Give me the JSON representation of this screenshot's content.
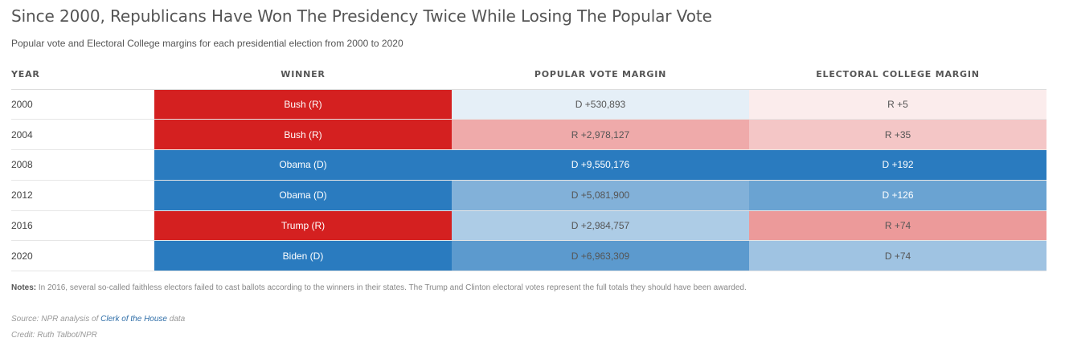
{
  "title": "Since 2000, Republicans Have Won The Presidency Twice While Losing The Popular Vote",
  "subtitle": "Popular vote and Electoral College margins for each presidential election from 2000 to 2020",
  "colors": {
    "rep_strong": "#d42020",
    "dem_strong": "#2a7bbf",
    "rep_light": "#f2b9b9",
    "dem_light": "#bdd7eb",
    "neutral_light": "#f2f6f9"
  },
  "chart_data": {
    "type": "table",
    "columns": [
      "YEAR",
      "WINNER",
      "POPULAR VOTE MARGIN",
      "ELECTORAL COLLEGE MARGIN"
    ],
    "rows": [
      {
        "year": "2000",
        "winner": "Bush (R)",
        "winner_party": "R",
        "popular": "D +530,893",
        "popular_party": "D",
        "popular_value": 530893,
        "electoral": "R +5",
        "electoral_party": "R",
        "electoral_value": 5
      },
      {
        "year": "2004",
        "winner": "Bush (R)",
        "winner_party": "R",
        "popular": "R +2,978,127",
        "popular_party": "R",
        "popular_value": 2978127,
        "electoral": "R +35",
        "electoral_party": "R",
        "electoral_value": 35
      },
      {
        "year": "2008",
        "winner": "Obama (D)",
        "winner_party": "D",
        "popular": "D +9,550,176",
        "popular_party": "D",
        "popular_value": 9550176,
        "electoral": "D +192",
        "electoral_party": "D",
        "electoral_value": 192
      },
      {
        "year": "2012",
        "winner": "Obama (D)",
        "winner_party": "D",
        "popular": "D +5,081,900",
        "popular_party": "D",
        "popular_value": 5081900,
        "electoral": "D +126",
        "electoral_party": "D",
        "electoral_value": 126
      },
      {
        "year": "2016",
        "winner": "Trump (R)",
        "winner_party": "R",
        "popular": "D +2,984,757",
        "popular_party": "D",
        "popular_value": 2984757,
        "electoral": "R +74",
        "electoral_party": "R",
        "electoral_value": 74
      },
      {
        "year": "2020",
        "winner": "Biden (D)",
        "winner_party": "D",
        "popular": "D +6,963,309",
        "popular_party": "D",
        "popular_value": 6963309,
        "electoral": "D +74",
        "electoral_party": "D",
        "electoral_value": 74
      }
    ]
  },
  "notes": {
    "label": "Notes:",
    "text": " In 2016, several so-called faithless electors failed to cast ballots according to the winners in their states. The Trump and Clinton electoral votes represent the full totals they should have been awarded."
  },
  "source": {
    "prefix": "Source: NPR analysis of ",
    "link": "Clerk of the House",
    "suffix": " data"
  },
  "credit": "Credit: Ruth Talbot/NPR"
}
